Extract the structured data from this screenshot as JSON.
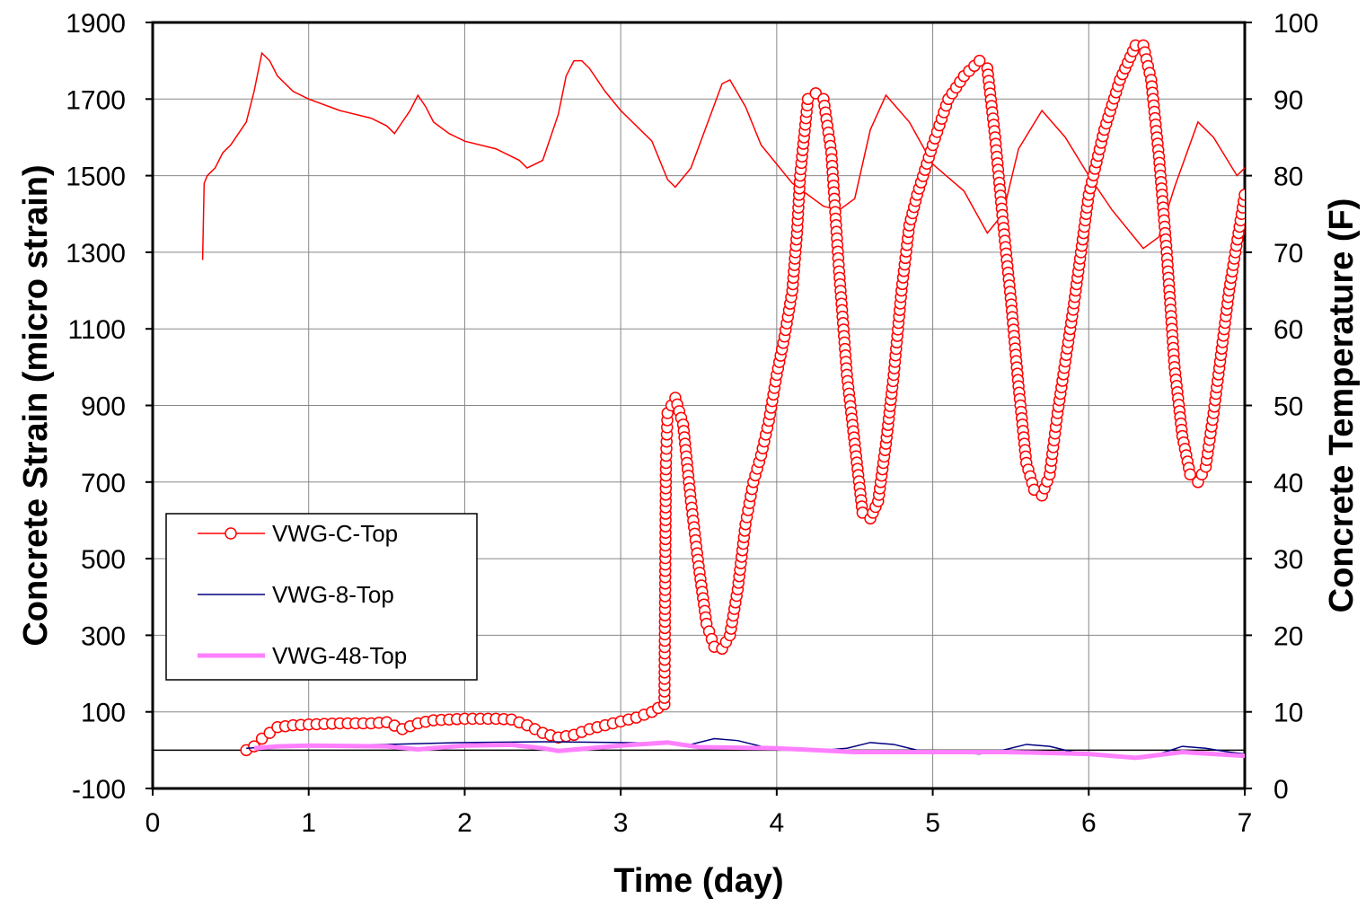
{
  "chart_data": {
    "type": "line",
    "xlabel": "Time (day)",
    "ylabel": "Concrete Strain (micro strain)",
    "y2label": "Concrete Temperature (F)",
    "xlim": [
      0,
      7
    ],
    "ylim": [
      -100,
      1900
    ],
    "y2lim": [
      0,
      100
    ],
    "xticks": [
      "0",
      "1",
      "2",
      "3",
      "4",
      "5",
      "6",
      "7"
    ],
    "yticks": [
      "-100",
      "100",
      "300",
      "500",
      "700",
      "900",
      "1100",
      "1300",
      "1500",
      "1700",
      "1900"
    ],
    "y2ticks": [
      "0",
      "10",
      "20",
      "30",
      "40",
      "50",
      "60",
      "70",
      "80",
      "90",
      "100"
    ],
    "grid": true,
    "legend_position": "lower-left",
    "series": [
      {
        "name": "VWG-C-Top",
        "color": "#ff0000",
        "style": "line-circle-markers",
        "x": [
          0.6,
          0.65,
          0.7,
          0.75,
          0.8,
          0.9,
          1.0,
          1.2,
          1.4,
          1.5,
          1.6,
          1.7,
          1.8,
          2.0,
          2.2,
          2.3,
          2.4,
          2.5,
          2.6,
          2.7,
          2.8,
          2.9,
          3.0,
          3.1,
          3.2,
          3.28,
          3.29,
          3.3,
          3.35,
          3.4,
          3.45,
          3.5,
          3.55,
          3.6,
          3.65,
          3.7,
          3.75,
          3.8,
          3.85,
          3.9,
          3.95,
          4.0,
          4.05,
          4.1,
          4.13,
          4.15,
          4.2,
          4.25,
          4.3,
          4.35,
          4.4,
          4.45,
          4.5,
          4.55,
          4.6,
          4.65,
          4.7,
          4.75,
          4.8,
          4.85,
          4.9,
          5.0,
          5.1,
          5.2,
          5.3,
          5.35,
          5.4,
          5.45,
          5.5,
          5.55,
          5.6,
          5.65,
          5.7,
          5.75,
          5.8,
          5.9,
          6.0,
          6.1,
          6.2,
          6.3,
          6.35,
          6.4,
          6.45,
          6.5,
          6.55,
          6.6,
          6.65,
          6.7,
          6.75,
          6.8,
          6.9,
          7.0
        ],
        "y": [
          0,
          10,
          30,
          45,
          60,
          65,
          67,
          70,
          70,
          73,
          55,
          70,
          78,
          82,
          82,
          80,
          65,
          45,
          33,
          40,
          55,
          65,
          75,
          85,
          100,
          120,
          750,
          880,
          920,
          850,
          650,
          480,
          330,
          270,
          265,
          300,
          420,
          590,
          700,
          770,
          860,
          980,
          1080,
          1200,
          1350,
          1500,
          1700,
          1715,
          1700,
          1560,
          1250,
          980,
          800,
          620,
          605,
          650,
          800,
          980,
          1200,
          1370,
          1450,
          1580,
          1700,
          1760,
          1800,
          1780,
          1600,
          1380,
          1180,
          950,
          750,
          680,
          665,
          720,
          880,
          1150,
          1450,
          1620,
          1750,
          1840,
          1840,
          1750,
          1550,
          1300,
          1000,
          820,
          720,
          700,
          740,
          880,
          1200,
          1450
        ]
      },
      {
        "name": "VWG-8-Top",
        "color": "#000080",
        "style": "thin-line",
        "x": [
          0.6,
          0.8,
          1.0,
          1.5,
          2.0,
          2.5,
          3.0,
          3.3,
          3.45,
          3.6,
          3.75,
          3.9,
          4.1,
          4.3,
          4.45,
          4.6,
          4.75,
          4.9,
          5.1,
          5.3,
          5.45,
          5.6,
          5.75,
          5.9,
          6.1,
          6.3,
          6.45,
          6.6,
          6.75,
          6.9,
          7.0
        ],
        "y": [
          5,
          10,
          12,
          15,
          20,
          22,
          20,
          18,
          15,
          30,
          25,
          10,
          5,
          0,
          5,
          20,
          15,
          0,
          -5,
          -10,
          0,
          15,
          10,
          -5,
          -10,
          -20,
          -10,
          10,
          5,
          -5,
          -10
        ]
      },
      {
        "name": "VWG-48-Top",
        "color": "#ff80ff",
        "style": "thick-line",
        "x": [
          0.65,
          0.8,
          1.0,
          1.5,
          1.7,
          2.0,
          2.3,
          2.5,
          2.6,
          2.8,
          3.0,
          3.3,
          3.5,
          4.0,
          4.5,
          5.0,
          5.5,
          6.0,
          6.3,
          6.6,
          7.0
        ],
        "y": [
          5,
          10,
          12,
          10,
          2,
          12,
          14,
          5,
          -2,
          5,
          12,
          20,
          8,
          5,
          -5,
          -5,
          -5,
          -10,
          -20,
          -5,
          -15
        ]
      }
    ],
    "temperature_series": {
      "color": "#ff0000",
      "style": "thin-line",
      "x": [
        0.32,
        0.33,
        0.35,
        0.4,
        0.45,
        0.5,
        0.6,
        0.65,
        0.7,
        0.75,
        0.8,
        0.9,
        1.0,
        1.2,
        1.4,
        1.5,
        1.55,
        1.6,
        1.65,
        1.7,
        1.75,
        1.8,
        1.9,
        2.0,
        2.2,
        2.35,
        2.4,
        2.5,
        2.6,
        2.65,
        2.7,
        2.75,
        2.8,
        2.9,
        3.0,
        3.2,
        3.3,
        3.35,
        3.45,
        3.55,
        3.65,
        3.7,
        3.8,
        3.9,
        4.1,
        4.3,
        4.4,
        4.5,
        4.6,
        4.7,
        4.85,
        5.0,
        5.2,
        5.35,
        5.45,
        5.55,
        5.7,
        5.85,
        6.0,
        6.15,
        6.35,
        6.45,
        6.55,
        6.7,
        6.8,
        6.95,
        7.05
      ],
      "y": [
        69,
        79,
        80,
        81,
        83,
        84,
        87,
        91,
        96,
        95,
        93,
        91,
        90,
        88.5,
        87.5,
        86.5,
        85.5,
        87,
        88.5,
        90.5,
        89,
        87,
        85.5,
        84.5,
        83.5,
        82,
        81,
        82,
        88,
        93,
        95,
        95,
        94,
        91,
        88.5,
        84.5,
        79.5,
        78.5,
        81,
        86.5,
        92,
        92.5,
        89,
        84,
        79,
        76,
        75.5,
        77,
        86,
        90.5,
        87,
        81.5,
        78,
        72.5,
        75,
        83.5,
        88.5,
        85,
        80,
        75.5,
        70.5,
        72,
        78.5,
        87,
        85,
        80,
        82
      ]
    }
  }
}
